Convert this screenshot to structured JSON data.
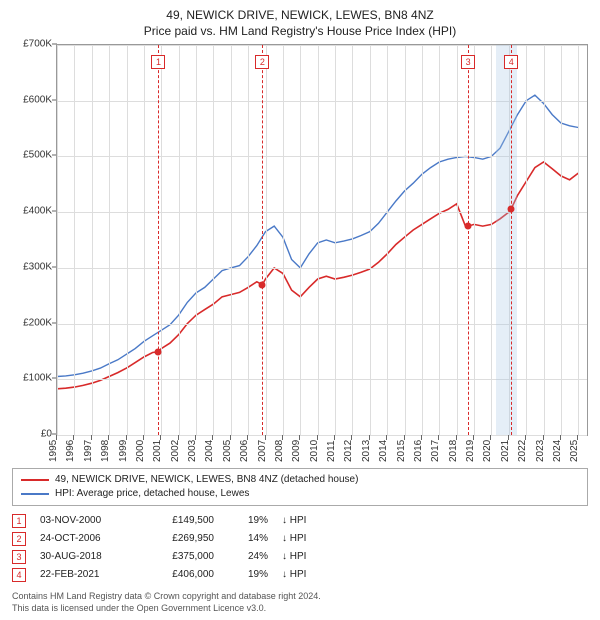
{
  "title_line1": "49, NEWICK DRIVE, NEWICK, LEWES, BN8 4NZ",
  "title_line2": "Price paid vs. HM Land Registry's House Price Index (HPI)",
  "title_fontsize": 12,
  "chart": {
    "type": "line",
    "background_color": "#ffffff",
    "border_color": "#999999",
    "grid_color": "#dddddd",
    "x": {
      "min": 1995,
      "max": 2025.5,
      "ticks": [
        1995,
        1996,
        1997,
        1998,
        1999,
        2000,
        2001,
        2002,
        2003,
        2004,
        2005,
        2006,
        2007,
        2008,
        2009,
        2010,
        2011,
        2012,
        2013,
        2014,
        2015,
        2016,
        2017,
        2018,
        2019,
        2020,
        2021,
        2022,
        2023,
        2024,
        2025
      ],
      "tick_fontsize": 10
    },
    "y": {
      "min": 0,
      "max": 700000,
      "ticks": [
        0,
        100000,
        200000,
        300000,
        400000,
        500000,
        600000,
        700000
      ],
      "tick_labels": [
        "£0",
        "£100K",
        "£200K",
        "£300K",
        "£400K",
        "£500K",
        "£600K",
        "£700K"
      ],
      "tick_fontsize": 10
    },
    "highlight_band": {
      "from": 2020.25,
      "to": 2021.5,
      "color": "rgba(168,200,230,0.30)"
    },
    "series": [
      {
        "id": "hpi",
        "label": "HPI: Average price, detached house, Lewes",
        "color": "#4a79c7",
        "line_width": 1.4,
        "points": [
          [
            1995,
            105000
          ],
          [
            1995.5,
            106000
          ],
          [
            1996,
            108000
          ],
          [
            1996.5,
            111000
          ],
          [
            1997,
            115000
          ],
          [
            1997.5,
            120000
          ],
          [
            1998,
            128000
          ],
          [
            1998.5,
            135000
          ],
          [
            1999,
            145000
          ],
          [
            1999.5,
            155000
          ],
          [
            2000,
            168000
          ],
          [
            2000.5,
            178000
          ],
          [
            2001,
            188000
          ],
          [
            2001.5,
            198000
          ],
          [
            2002,
            215000
          ],
          [
            2002.5,
            238000
          ],
          [
            2003,
            255000
          ],
          [
            2003.5,
            265000
          ],
          [
            2004,
            280000
          ],
          [
            2004.5,
            295000
          ],
          [
            2005,
            300000
          ],
          [
            2005.5,
            304000
          ],
          [
            2006,
            320000
          ],
          [
            2006.5,
            340000
          ],
          [
            2007,
            365000
          ],
          [
            2007.5,
            375000
          ],
          [
            2008,
            355000
          ],
          [
            2008.5,
            315000
          ],
          [
            2009,
            300000
          ],
          [
            2009.5,
            325000
          ],
          [
            2010,
            345000
          ],
          [
            2010.5,
            350000
          ],
          [
            2011,
            345000
          ],
          [
            2011.5,
            348000
          ],
          [
            2012,
            352000
          ],
          [
            2012.5,
            358000
          ],
          [
            2013,
            365000
          ],
          [
            2013.5,
            380000
          ],
          [
            2014,
            400000
          ],
          [
            2014.5,
            420000
          ],
          [
            2015,
            438000
          ],
          [
            2015.5,
            452000
          ],
          [
            2016,
            468000
          ],
          [
            2016.5,
            480000
          ],
          [
            2017,
            490000
          ],
          [
            2017.5,
            495000
          ],
          [
            2018,
            498000
          ],
          [
            2018.5,
            500000
          ],
          [
            2019,
            498000
          ],
          [
            2019.5,
            495000
          ],
          [
            2020,
            500000
          ],
          [
            2020.5,
            515000
          ],
          [
            2021,
            545000
          ],
          [
            2021.5,
            575000
          ],
          [
            2022,
            600000
          ],
          [
            2022.5,
            610000
          ],
          [
            2023,
            595000
          ],
          [
            2023.5,
            575000
          ],
          [
            2024,
            560000
          ],
          [
            2024.5,
            555000
          ],
          [
            2025,
            552000
          ]
        ]
      },
      {
        "id": "property",
        "label": "49, NEWICK DRIVE, NEWICK, LEWES, BN8 4NZ (detached house)",
        "color": "#d82a2a",
        "line_width": 1.6,
        "points": [
          [
            1995,
            83000
          ],
          [
            1995.5,
            84000
          ],
          [
            1996,
            86000
          ],
          [
            1996.5,
            89000
          ],
          [
            1997,
            93000
          ],
          [
            1997.5,
            98000
          ],
          [
            1998,
            105000
          ],
          [
            1998.5,
            112000
          ],
          [
            1999,
            120000
          ],
          [
            1999.5,
            130000
          ],
          [
            2000,
            140000
          ],
          [
            2000.5,
            148000
          ],
          [
            2000.84,
            149500
          ],
          [
            2001,
            155000
          ],
          [
            2001.5,
            165000
          ],
          [
            2002,
            180000
          ],
          [
            2002.5,
            200000
          ],
          [
            2003,
            215000
          ],
          [
            2003.5,
            225000
          ],
          [
            2004,
            235000
          ],
          [
            2004.5,
            248000
          ],
          [
            2005,
            252000
          ],
          [
            2005.5,
            256000
          ],
          [
            2006,
            265000
          ],
          [
            2006.5,
            275000
          ],
          [
            2006.82,
            269950
          ],
          [
            2007,
            280000
          ],
          [
            2007.5,
            300000
          ],
          [
            2008,
            290000
          ],
          [
            2008.5,
            260000
          ],
          [
            2009,
            248000
          ],
          [
            2009.5,
            265000
          ],
          [
            2010,
            280000
          ],
          [
            2010.5,
            285000
          ],
          [
            2011,
            280000
          ],
          [
            2011.5,
            283000
          ],
          [
            2012,
            287000
          ],
          [
            2012.5,
            292000
          ],
          [
            2013,
            298000
          ],
          [
            2013.5,
            310000
          ],
          [
            2014,
            325000
          ],
          [
            2014.5,
            342000
          ],
          [
            2015,
            355000
          ],
          [
            2015.5,
            368000
          ],
          [
            2016,
            378000
          ],
          [
            2016.5,
            388000
          ],
          [
            2017,
            398000
          ],
          [
            2017.5,
            405000
          ],
          [
            2018,
            415000
          ],
          [
            2018.5,
            375000
          ],
          [
            2018.66,
            375000
          ],
          [
            2019,
            378000
          ],
          [
            2019.5,
            375000
          ],
          [
            2020,
            378000
          ],
          [
            2020.5,
            388000
          ],
          [
            2021,
            400000
          ],
          [
            2021.14,
            406000
          ],
          [
            2021.5,
            430000
          ],
          [
            2022,
            455000
          ],
          [
            2022.5,
            480000
          ],
          [
            2023,
            490000
          ],
          [
            2023.5,
            478000
          ],
          [
            2024,
            465000
          ],
          [
            2024.5,
            458000
          ],
          [
            2025,
            470000
          ]
        ]
      }
    ],
    "event_markers": [
      {
        "n": "1",
        "x": 2000.84,
        "y": 149500,
        "color": "#d82a2a",
        "box_top_offset": 10
      },
      {
        "n": "2",
        "x": 2006.82,
        "y": 269950,
        "color": "#d82a2a",
        "box_top_offset": 10
      },
      {
        "n": "3",
        "x": 2018.66,
        "y": 375000,
        "color": "#d82a2a",
        "box_top_offset": 10
      },
      {
        "n": "4",
        "x": 2021.14,
        "y": 406000,
        "color": "#d82a2a",
        "box_top_offset": 10
      }
    ]
  },
  "legend": {
    "border_color": "#aaaaaa",
    "items": [
      {
        "color": "#d82a2a",
        "text": "49, NEWICK DRIVE, NEWICK, LEWES, BN8 4NZ (detached house)"
      },
      {
        "color": "#4a79c7",
        "text": "HPI: Average price, detached house, Lewes"
      }
    ]
  },
  "sales": {
    "rows": [
      {
        "n": "1",
        "box_color": "#d82a2a",
        "date": "03-NOV-2000",
        "price": "£149,500",
        "pct": "19%",
        "arrow": "↓ HPI"
      },
      {
        "n": "2",
        "box_color": "#d82a2a",
        "date": "24-OCT-2006",
        "price": "£269,950",
        "pct": "14%",
        "arrow": "↓ HPI"
      },
      {
        "n": "3",
        "box_color": "#d82a2a",
        "date": "30-AUG-2018",
        "price": "£375,000",
        "pct": "24%",
        "arrow": "↓ HPI"
      },
      {
        "n": "4",
        "box_color": "#d82a2a",
        "date": "22-FEB-2021",
        "price": "£406,000",
        "pct": "19%",
        "arrow": "↓ HPI"
      }
    ]
  },
  "footer": {
    "line1": "Contains HM Land Registry data © Crown copyright and database right 2024.",
    "line2": "This data is licensed under the Open Government Licence v3.0."
  }
}
